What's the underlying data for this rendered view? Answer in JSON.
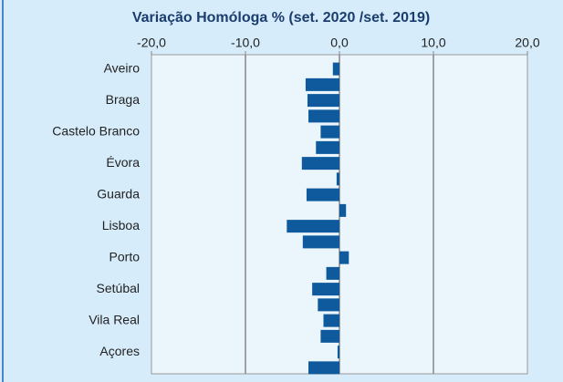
{
  "chart_data": {
    "type": "hbar",
    "title": "Variação Homóloga % (set. 2020 /set. 2019)",
    "categories": [
      "Aveiro",
      null,
      "Braga",
      null,
      "Castelo Branco",
      null,
      "Évora",
      null,
      "Guarda",
      null,
      "Lisboa",
      null,
      "Porto",
      null,
      "Setúbal",
      null,
      "Vila Real",
      null,
      "Açores",
      null
    ],
    "values": [
      -0.7,
      -3.6,
      -3.4,
      -3.3,
      -2.0,
      -2.5,
      -4.0,
      -0.3,
      -3.5,
      0.7,
      -5.6,
      -3.9,
      1.0,
      -1.4,
      -2.9,
      -2.3,
      -1.7,
      -2.0,
      -0.2,
      -3.3
    ],
    "color": "#0f5a9c",
    "xlim": [
      -20,
      20
    ],
    "xticks": [
      {
        "value": -20,
        "label": "-20,0"
      },
      {
        "value": -10,
        "label": "-10,0"
      },
      {
        "value": 0,
        "label": "0,0"
      },
      {
        "value": 10,
        "label": "10,0"
      },
      {
        "value": 20,
        "label": "20,0"
      }
    ],
    "grid": true
  }
}
